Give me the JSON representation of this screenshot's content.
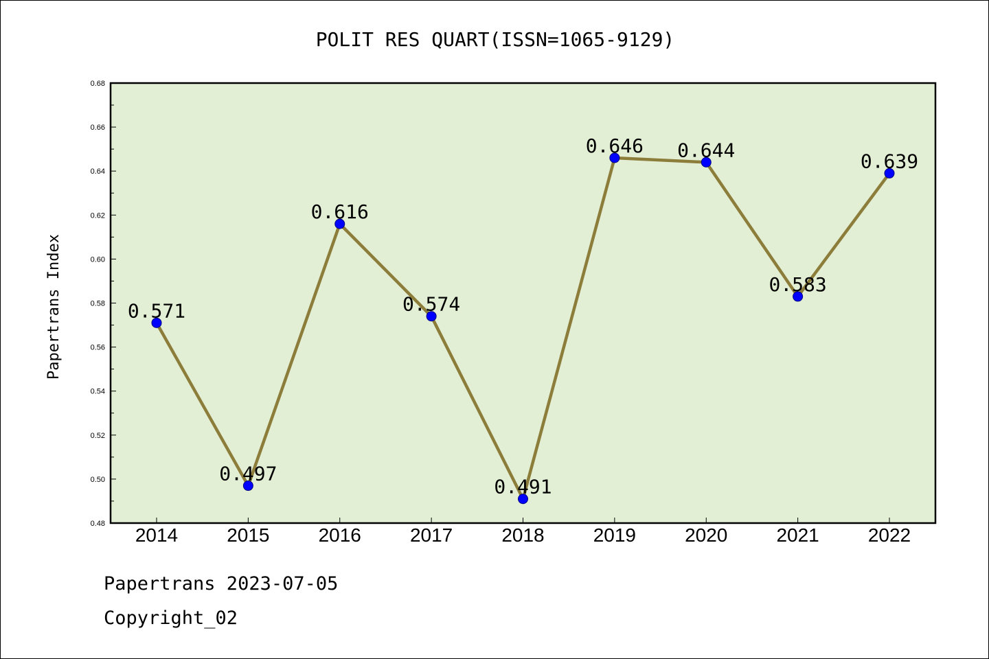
{
  "chart_data": {
    "type": "line",
    "title": "POLIT RES QUART(ISSN=1065-9129)",
    "xlabel": "",
    "ylabel": "Papertrans Index",
    "categories": [
      "2014",
      "2015",
      "2016",
      "2017",
      "2018",
      "2019",
      "2020",
      "2021",
      "2022"
    ],
    "values": [
      0.571,
      0.497,
      0.616,
      0.574,
      0.491,
      0.646,
      0.644,
      0.583,
      0.639
    ],
    "data_labels": [
      "0.571",
      "0.497",
      "0.616",
      "0.574",
      "0.491",
      "0.646",
      "0.644",
      "0.583",
      "0.639"
    ],
    "ylim": [
      0.48,
      0.68
    ],
    "yticks": [
      0.48,
      0.5,
      0.52,
      0.54,
      0.56,
      0.58,
      0.6,
      0.62,
      0.64,
      0.66,
      0.68
    ],
    "ytick_labels": [
      "0.48",
      "0.50",
      "0.52",
      "0.54",
      "0.56",
      "0.58",
      "0.60",
      "0.62",
      "0.64",
      "0.66",
      "0.68"
    ],
    "grid": false,
    "legend": "none",
    "colors": {
      "plot_background": "#e2efd5",
      "line": "#8c7d3a",
      "marker": "#0000ff",
      "marker_edge": "#000080"
    }
  },
  "footer": {
    "date_line": "Papertrans 2023-07-05",
    "copyright_line": "Copyright_02"
  }
}
